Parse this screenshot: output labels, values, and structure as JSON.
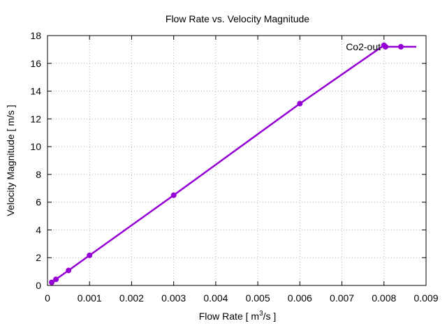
{
  "chart_data": {
    "type": "line",
    "title": "Flow Rate  vs. Velocity Magnitude",
    "xlabel_prefix": "Flow Rate [ m",
    "xlabel_superscript": "3",
    "xlabel_suffix": "/s ]",
    "ylabel": "Velocity Magnitude [ m/s ]",
    "xlim": [
      0,
      0.009
    ],
    "ylim": [
      0,
      18
    ],
    "xticks": [
      0,
      0.001,
      0.002,
      0.003,
      0.004,
      0.005,
      0.006,
      0.007,
      0.008,
      0.009
    ],
    "xtick_labels": [
      "0",
      "0.001",
      "0.002",
      "0.003",
      "0.004",
      "0.005",
      "0.006",
      "0.007",
      "0.008",
      "0.009"
    ],
    "yticks": [
      0,
      2,
      4,
      6,
      8,
      10,
      12,
      14,
      16,
      18
    ],
    "ytick_labels": [
      "0",
      "2",
      "4",
      "6",
      "8",
      "10",
      "12",
      "14",
      "16",
      "18"
    ],
    "grid": true,
    "legend_position": "top-right",
    "series": [
      {
        "name": "Co2-out",
        "color": "#9400d3",
        "x": [
          0.0001,
          0.0002,
          0.0005,
          0.001,
          0.003,
          0.006,
          0.008
        ],
        "y": [
          0.22,
          0.44,
          1.08,
          2.17,
          6.5,
          13.1,
          17.3
        ]
      }
    ]
  }
}
